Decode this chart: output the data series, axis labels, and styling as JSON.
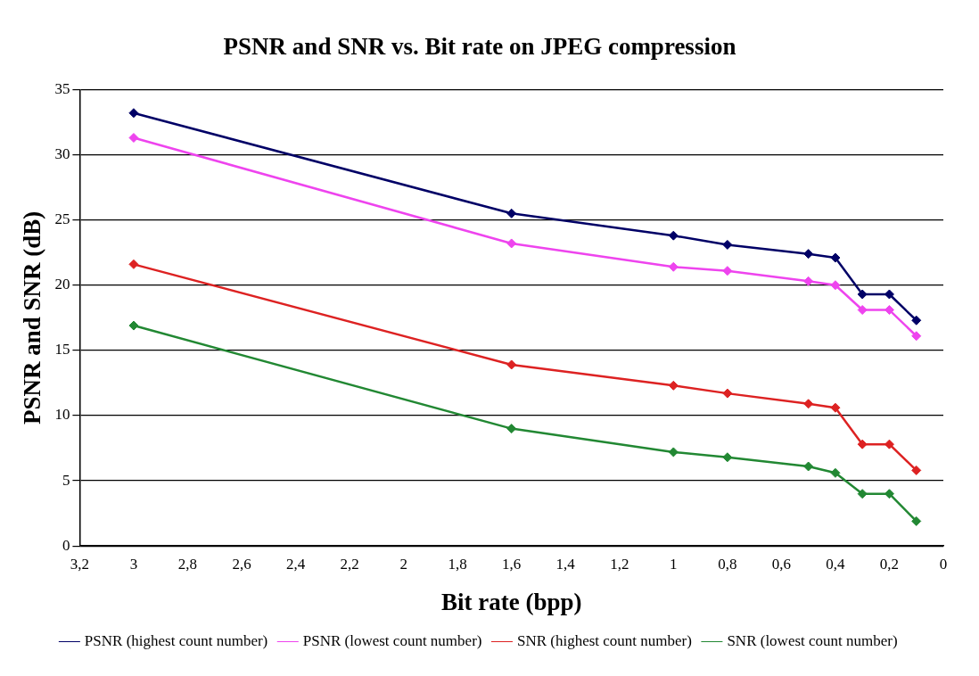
{
  "chart_data": {
    "type": "line",
    "title": "PSNR and SNR vs. Bit rate on JPEG compression",
    "xlabel": "Bit rate (bpp)",
    "ylabel": "PSNR and SNR (dB)",
    "x": [
      3,
      1.6,
      1,
      0.8,
      0.5,
      0.4,
      0.3,
      0.2,
      0.1
    ],
    "series": [
      {
        "name": "PSNR (highest count number)",
        "color": "#000066",
        "values": [
          33.2,
          25.5,
          23.8,
          23.1,
          22.4,
          22.1,
          19.3,
          19.3,
          17.3
        ]
      },
      {
        "name": "PSNR (lowest count number)",
        "color": "#ee44ee",
        "values": [
          31.3,
          23.2,
          21.4,
          21.1,
          20.3,
          20.0,
          18.1,
          18.1,
          16.1
        ]
      },
      {
        "name": "SNR (highest count number)",
        "color": "#dd2222",
        "values": [
          21.6,
          13.9,
          12.3,
          11.7,
          10.9,
          10.6,
          7.8,
          7.8,
          5.8
        ]
      },
      {
        "name": "SNR (lowest count number)",
        "color": "#228833",
        "values": [
          16.9,
          9.0,
          7.2,
          6.8,
          6.1,
          5.6,
          4.0,
          4.0,
          1.9
        ]
      }
    ],
    "xlim": [
      3.2,
      0
    ],
    "xticks": [
      {
        "value": 3.2,
        "label": "3,2"
      },
      3,
      {
        "value": 2.8,
        "label": "2,8"
      },
      {
        "value": 2.6,
        "label": "2,6"
      },
      {
        "value": 2.4,
        "label": "2,4"
      },
      {
        "value": 2.2,
        "label": "2,2"
      },
      2,
      {
        "value": 1.8,
        "label": "1,8"
      },
      {
        "value": 1.6,
        "label": "1,6"
      },
      {
        "value": 1.4,
        "label": "1,4"
      },
      {
        "value": 1.2,
        "label": "1,2"
      },
      1,
      {
        "value": 0.8,
        "label": "0,8"
      },
      {
        "value": 0.6,
        "label": "0,6"
      },
      {
        "value": 0.4,
        "label": "0,4"
      },
      {
        "value": 0.2,
        "label": "0,2"
      },
      0
    ],
    "ylim": [
      0,
      35
    ],
    "yticks": [
      0,
      5,
      10,
      15,
      20,
      25,
      30,
      35
    ],
    "grid": "y",
    "legend": "bottom",
    "marker": "diamond",
    "line_style": "solid"
  }
}
